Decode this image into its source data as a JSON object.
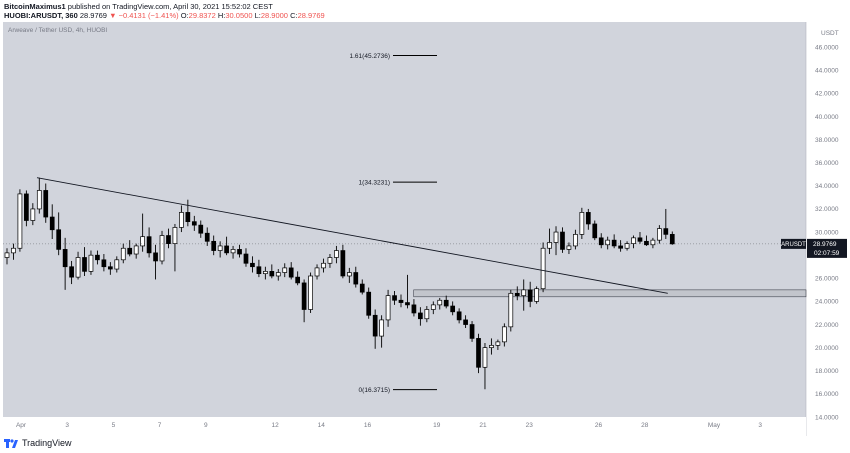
{
  "header": {
    "author": "BitcoinMaximus1",
    "published_text": "published on TradingView.com, April 30, 2021 15:52:02 CEST",
    "symbol": "HUOBI:ARUSDT, 360",
    "last": "28.9769",
    "change": "▼ −0.4131 (−1.41%)",
    "o_label": "O:",
    "o_value": "29.8372",
    "h_label": "H:",
    "h_value": "30.0500",
    "l_label": "L:",
    "l_value": "28.9000",
    "c_label": "C:",
    "c_value": "28.9769"
  },
  "footer": {
    "brand": "TradingView"
  },
  "colors": {
    "background": "#d1d4dc",
    "up": "#ffffff",
    "down": "#000000",
    "line": "#131722",
    "price_tag": "#131722"
  },
  "chart_data": {
    "type": "candlestick",
    "title": "Arweave / Tether USD, 4h, HUOBI",
    "y_unit": "USDT",
    "ylim": [
      14,
      48
    ],
    "y_ticks": [
      "14.0000",
      "16.0000",
      "18.0000",
      "20.0000",
      "22.0000",
      "24.0000",
      "26.0000",
      "28.0000",
      "30.0000",
      "32.0000",
      "34.0000",
      "36.0000",
      "38.0000",
      "40.0000",
      "42.0000",
      "44.0000",
      "46.0000"
    ],
    "x_ticks": [
      "Apr",
      "3",
      "5",
      "7",
      "9",
      "12",
      "14",
      "16",
      "19",
      "21",
      "23",
      "26",
      "28",
      "May",
      "3"
    ],
    "last_price": {
      "label": "ARUSDT",
      "value": "28.9769",
      "countdown": "02:07:59",
      "price": 28.9769
    },
    "fib_levels": [
      {
        "label": "1.61(45.2736)",
        "price": 45.2736
      },
      {
        "label": "1(34.3231)",
        "price": 34.3231
      },
      {
        "label": "0(16.3715)",
        "price": 16.3715
      }
    ],
    "trendline": {
      "from": {
        "date": "2021-04-01",
        "price": 34.7
      },
      "to": {
        "date": "2021-04-29",
        "price": 24.7
      }
    },
    "support_zone": [
      24.4,
      25.0
    ],
    "grid": false,
    "candles": [
      {
        "o": 27.8,
        "h": 28.6,
        "l": 27.2,
        "c": 28.2
      },
      {
        "o": 28.2,
        "h": 29.0,
        "l": 27.6,
        "c": 28.6
      },
      {
        "o": 28.6,
        "h": 33.7,
        "l": 28.3,
        "c": 33.3
      },
      {
        "o": 33.3,
        "h": 33.6,
        "l": 30.5,
        "c": 31.0
      },
      {
        "o": 31.0,
        "h": 32.5,
        "l": 30.6,
        "c": 32.0
      },
      {
        "o": 32.0,
        "h": 34.7,
        "l": 31.6,
        "c": 33.6
      },
      {
        "o": 33.6,
        "h": 34.2,
        "l": 30.8,
        "c": 31.3
      },
      {
        "o": 31.3,
        "h": 32.4,
        "l": 29.4,
        "c": 30.2
      },
      {
        "o": 30.2,
        "h": 31.7,
        "l": 28.0,
        "c": 28.5
      },
      {
        "o": 28.5,
        "h": 29.5,
        "l": 25.0,
        "c": 27.0
      },
      {
        "o": 27.0,
        "h": 27.5,
        "l": 25.5,
        "c": 26.1
      },
      {
        "o": 26.1,
        "h": 28.3,
        "l": 25.9,
        "c": 27.8
      },
      {
        "o": 27.8,
        "h": 28.7,
        "l": 26.2,
        "c": 26.6
      },
      {
        "o": 26.6,
        "h": 28.4,
        "l": 26.3,
        "c": 28.0
      },
      {
        "o": 28.0,
        "h": 28.4,
        "l": 27.2,
        "c": 27.6
      },
      {
        "o": 27.6,
        "h": 28.1,
        "l": 26.6,
        "c": 27.0
      },
      {
        "o": 27.0,
        "h": 27.4,
        "l": 26.3,
        "c": 26.8
      },
      {
        "o": 26.8,
        "h": 27.9,
        "l": 26.5,
        "c": 27.6
      },
      {
        "o": 27.6,
        "h": 29.0,
        "l": 27.3,
        "c": 28.6
      },
      {
        "o": 28.6,
        "h": 29.3,
        "l": 27.9,
        "c": 28.1
      },
      {
        "o": 28.1,
        "h": 29.0,
        "l": 27.7,
        "c": 28.8
      },
      {
        "o": 28.8,
        "h": 31.6,
        "l": 28.3,
        "c": 29.6
      },
      {
        "o": 29.6,
        "h": 30.4,
        "l": 27.8,
        "c": 28.2
      },
      {
        "o": 28.2,
        "h": 28.9,
        "l": 25.9,
        "c": 27.5
      },
      {
        "o": 27.5,
        "h": 30.1,
        "l": 27.2,
        "c": 29.7
      },
      {
        "o": 29.7,
        "h": 30.3,
        "l": 28.6,
        "c": 29.0
      },
      {
        "o": 29.0,
        "h": 30.7,
        "l": 26.6,
        "c": 30.4
      },
      {
        "o": 30.4,
        "h": 32.3,
        "l": 30.0,
        "c": 31.7
      },
      {
        "o": 31.7,
        "h": 32.8,
        "l": 30.5,
        "c": 30.9
      },
      {
        "o": 30.9,
        "h": 31.4,
        "l": 30.1,
        "c": 30.6
      },
      {
        "o": 30.6,
        "h": 31.0,
        "l": 29.5,
        "c": 29.9
      },
      {
        "o": 29.9,
        "h": 30.4,
        "l": 28.8,
        "c": 29.2
      },
      {
        "o": 29.2,
        "h": 29.7,
        "l": 28.0,
        "c": 28.4
      },
      {
        "o": 28.4,
        "h": 29.2,
        "l": 27.8,
        "c": 28.8
      },
      {
        "o": 28.8,
        "h": 29.6,
        "l": 28.0,
        "c": 28.2
      },
      {
        "o": 28.2,
        "h": 28.8,
        "l": 27.7,
        "c": 28.5
      },
      {
        "o": 28.5,
        "h": 28.9,
        "l": 27.8,
        "c": 28.1
      },
      {
        "o": 28.1,
        "h": 28.6,
        "l": 27.0,
        "c": 27.3
      },
      {
        "o": 27.3,
        "h": 27.9,
        "l": 26.5,
        "c": 27.0
      },
      {
        "o": 27.0,
        "h": 27.6,
        "l": 26.1,
        "c": 26.4
      },
      {
        "o": 26.4,
        "h": 27.0,
        "l": 25.9,
        "c": 26.6
      },
      {
        "o": 26.6,
        "h": 27.2,
        "l": 26.0,
        "c": 26.2
      },
      {
        "o": 26.2,
        "h": 26.8,
        "l": 25.8,
        "c": 26.5
      },
      {
        "o": 26.5,
        "h": 27.3,
        "l": 26.1,
        "c": 26.9
      },
      {
        "o": 26.9,
        "h": 27.4,
        "l": 25.9,
        "c": 26.1
      },
      {
        "o": 26.1,
        "h": 26.6,
        "l": 25.4,
        "c": 25.6
      },
      {
        "o": 25.6,
        "h": 25.9,
        "l": 22.2,
        "c": 23.3
      },
      {
        "o": 23.3,
        "h": 26.5,
        "l": 23.0,
        "c": 26.2
      },
      {
        "o": 26.2,
        "h": 27.2,
        "l": 25.9,
        "c": 26.9
      },
      {
        "o": 26.9,
        "h": 27.7,
        "l": 26.5,
        "c": 27.3
      },
      {
        "o": 27.3,
        "h": 28.1,
        "l": 26.9,
        "c": 27.8
      },
      {
        "o": 27.8,
        "h": 28.8,
        "l": 27.3,
        "c": 28.4
      },
      {
        "o": 28.4,
        "h": 28.9,
        "l": 26.0,
        "c": 26.2
      },
      {
        "o": 26.2,
        "h": 26.9,
        "l": 25.6,
        "c": 26.5
      },
      {
        "o": 26.5,
        "h": 27.0,
        "l": 25.2,
        "c": 25.5
      },
      {
        "o": 25.5,
        "h": 25.9,
        "l": 24.6,
        "c": 24.8
      },
      {
        "o": 24.8,
        "h": 25.2,
        "l": 22.5,
        "c": 22.8
      },
      {
        "o": 22.8,
        "h": 23.3,
        "l": 19.9,
        "c": 21.0
      },
      {
        "o": 21.0,
        "h": 22.8,
        "l": 20.0,
        "c": 22.4
      },
      {
        "o": 22.4,
        "h": 25.0,
        "l": 21.8,
        "c": 24.5
      },
      {
        "o": 24.5,
        "h": 24.9,
        "l": 23.7,
        "c": 24.1
      },
      {
        "o": 24.1,
        "h": 24.6,
        "l": 23.5,
        "c": 23.9
      },
      {
        "o": 23.9,
        "h": 26.3,
        "l": 23.4,
        "c": 23.7
      },
      {
        "o": 23.7,
        "h": 24.2,
        "l": 22.7,
        "c": 23.0
      },
      {
        "o": 23.0,
        "h": 23.5,
        "l": 21.9,
        "c": 22.5
      },
      {
        "o": 22.5,
        "h": 23.6,
        "l": 22.2,
        "c": 23.3
      },
      {
        "o": 23.3,
        "h": 24.0,
        "l": 22.9,
        "c": 23.7
      },
      {
        "o": 23.7,
        "h": 24.3,
        "l": 23.3,
        "c": 24.1
      },
      {
        "o": 24.1,
        "h": 24.5,
        "l": 23.4,
        "c": 23.6
      },
      {
        "o": 23.6,
        "h": 24.0,
        "l": 22.8,
        "c": 23.1
      },
      {
        "o": 23.1,
        "h": 23.4,
        "l": 22.1,
        "c": 22.4
      },
      {
        "o": 22.4,
        "h": 22.8,
        "l": 21.7,
        "c": 22.0
      },
      {
        "o": 22.0,
        "h": 22.3,
        "l": 20.5,
        "c": 20.8
      },
      {
        "o": 20.8,
        "h": 21.2,
        "l": 17.8,
        "c": 18.3
      },
      {
        "o": 18.3,
        "h": 20.4,
        "l": 16.4,
        "c": 20.0
      },
      {
        "o": 20.0,
        "h": 20.8,
        "l": 19.4,
        "c": 20.2
      },
      {
        "o": 20.2,
        "h": 20.7,
        "l": 19.8,
        "c": 20.5
      },
      {
        "o": 20.5,
        "h": 22.1,
        "l": 20.1,
        "c": 21.8
      },
      {
        "o": 21.8,
        "h": 25.0,
        "l": 21.4,
        "c": 24.7
      },
      {
        "o": 24.7,
        "h": 25.3,
        "l": 24.1,
        "c": 24.5
      },
      {
        "o": 24.5,
        "h": 25.9,
        "l": 23.2,
        "c": 25.0
      },
      {
        "o": 25.0,
        "h": 25.7,
        "l": 23.5,
        "c": 24.0
      },
      {
        "o": 24.0,
        "h": 25.3,
        "l": 23.8,
        "c": 25.1
      },
      {
        "o": 25.1,
        "h": 29.1,
        "l": 24.8,
        "c": 28.6
      },
      {
        "o": 28.6,
        "h": 30.3,
        "l": 28.1,
        "c": 29.1
      },
      {
        "o": 29.1,
        "h": 30.5,
        "l": 28.0,
        "c": 30.0
      },
      {
        "o": 30.0,
        "h": 30.4,
        "l": 28.2,
        "c": 28.5
      },
      {
        "o": 28.5,
        "h": 29.1,
        "l": 28.1,
        "c": 28.8
      },
      {
        "o": 28.8,
        "h": 30.2,
        "l": 28.5,
        "c": 29.8
      },
      {
        "o": 29.8,
        "h": 32.1,
        "l": 29.4,
        "c": 31.7
      },
      {
        "o": 31.7,
        "h": 32.0,
        "l": 30.2,
        "c": 30.7
      },
      {
        "o": 30.7,
        "h": 31.0,
        "l": 29.3,
        "c": 29.5
      },
      {
        "o": 29.5,
        "h": 29.9,
        "l": 28.6,
        "c": 28.9
      },
      {
        "o": 28.9,
        "h": 29.6,
        "l": 28.5,
        "c": 29.3
      },
      {
        "o": 29.3,
        "h": 29.8,
        "l": 28.6,
        "c": 28.8
      },
      {
        "o": 28.8,
        "h": 29.3,
        "l": 28.3,
        "c": 28.6
      },
      {
        "o": 28.6,
        "h": 29.2,
        "l": 28.4,
        "c": 29.0
      },
      {
        "o": 29.0,
        "h": 29.7,
        "l": 28.6,
        "c": 29.5
      },
      {
        "o": 29.5,
        "h": 30.0,
        "l": 29.0,
        "c": 29.2
      },
      {
        "o": 29.2,
        "h": 29.7,
        "l": 28.8,
        "c": 28.9
      },
      {
        "o": 28.9,
        "h": 29.5,
        "l": 28.6,
        "c": 29.3
      },
      {
        "o": 29.3,
        "h": 30.6,
        "l": 29.0,
        "c": 30.3
      },
      {
        "o": 30.3,
        "h": 32.0,
        "l": 29.4,
        "c": 29.8
      },
      {
        "o": 29.8,
        "h": 30.05,
        "l": 28.9,
        "c": 28.9769
      }
    ]
  }
}
